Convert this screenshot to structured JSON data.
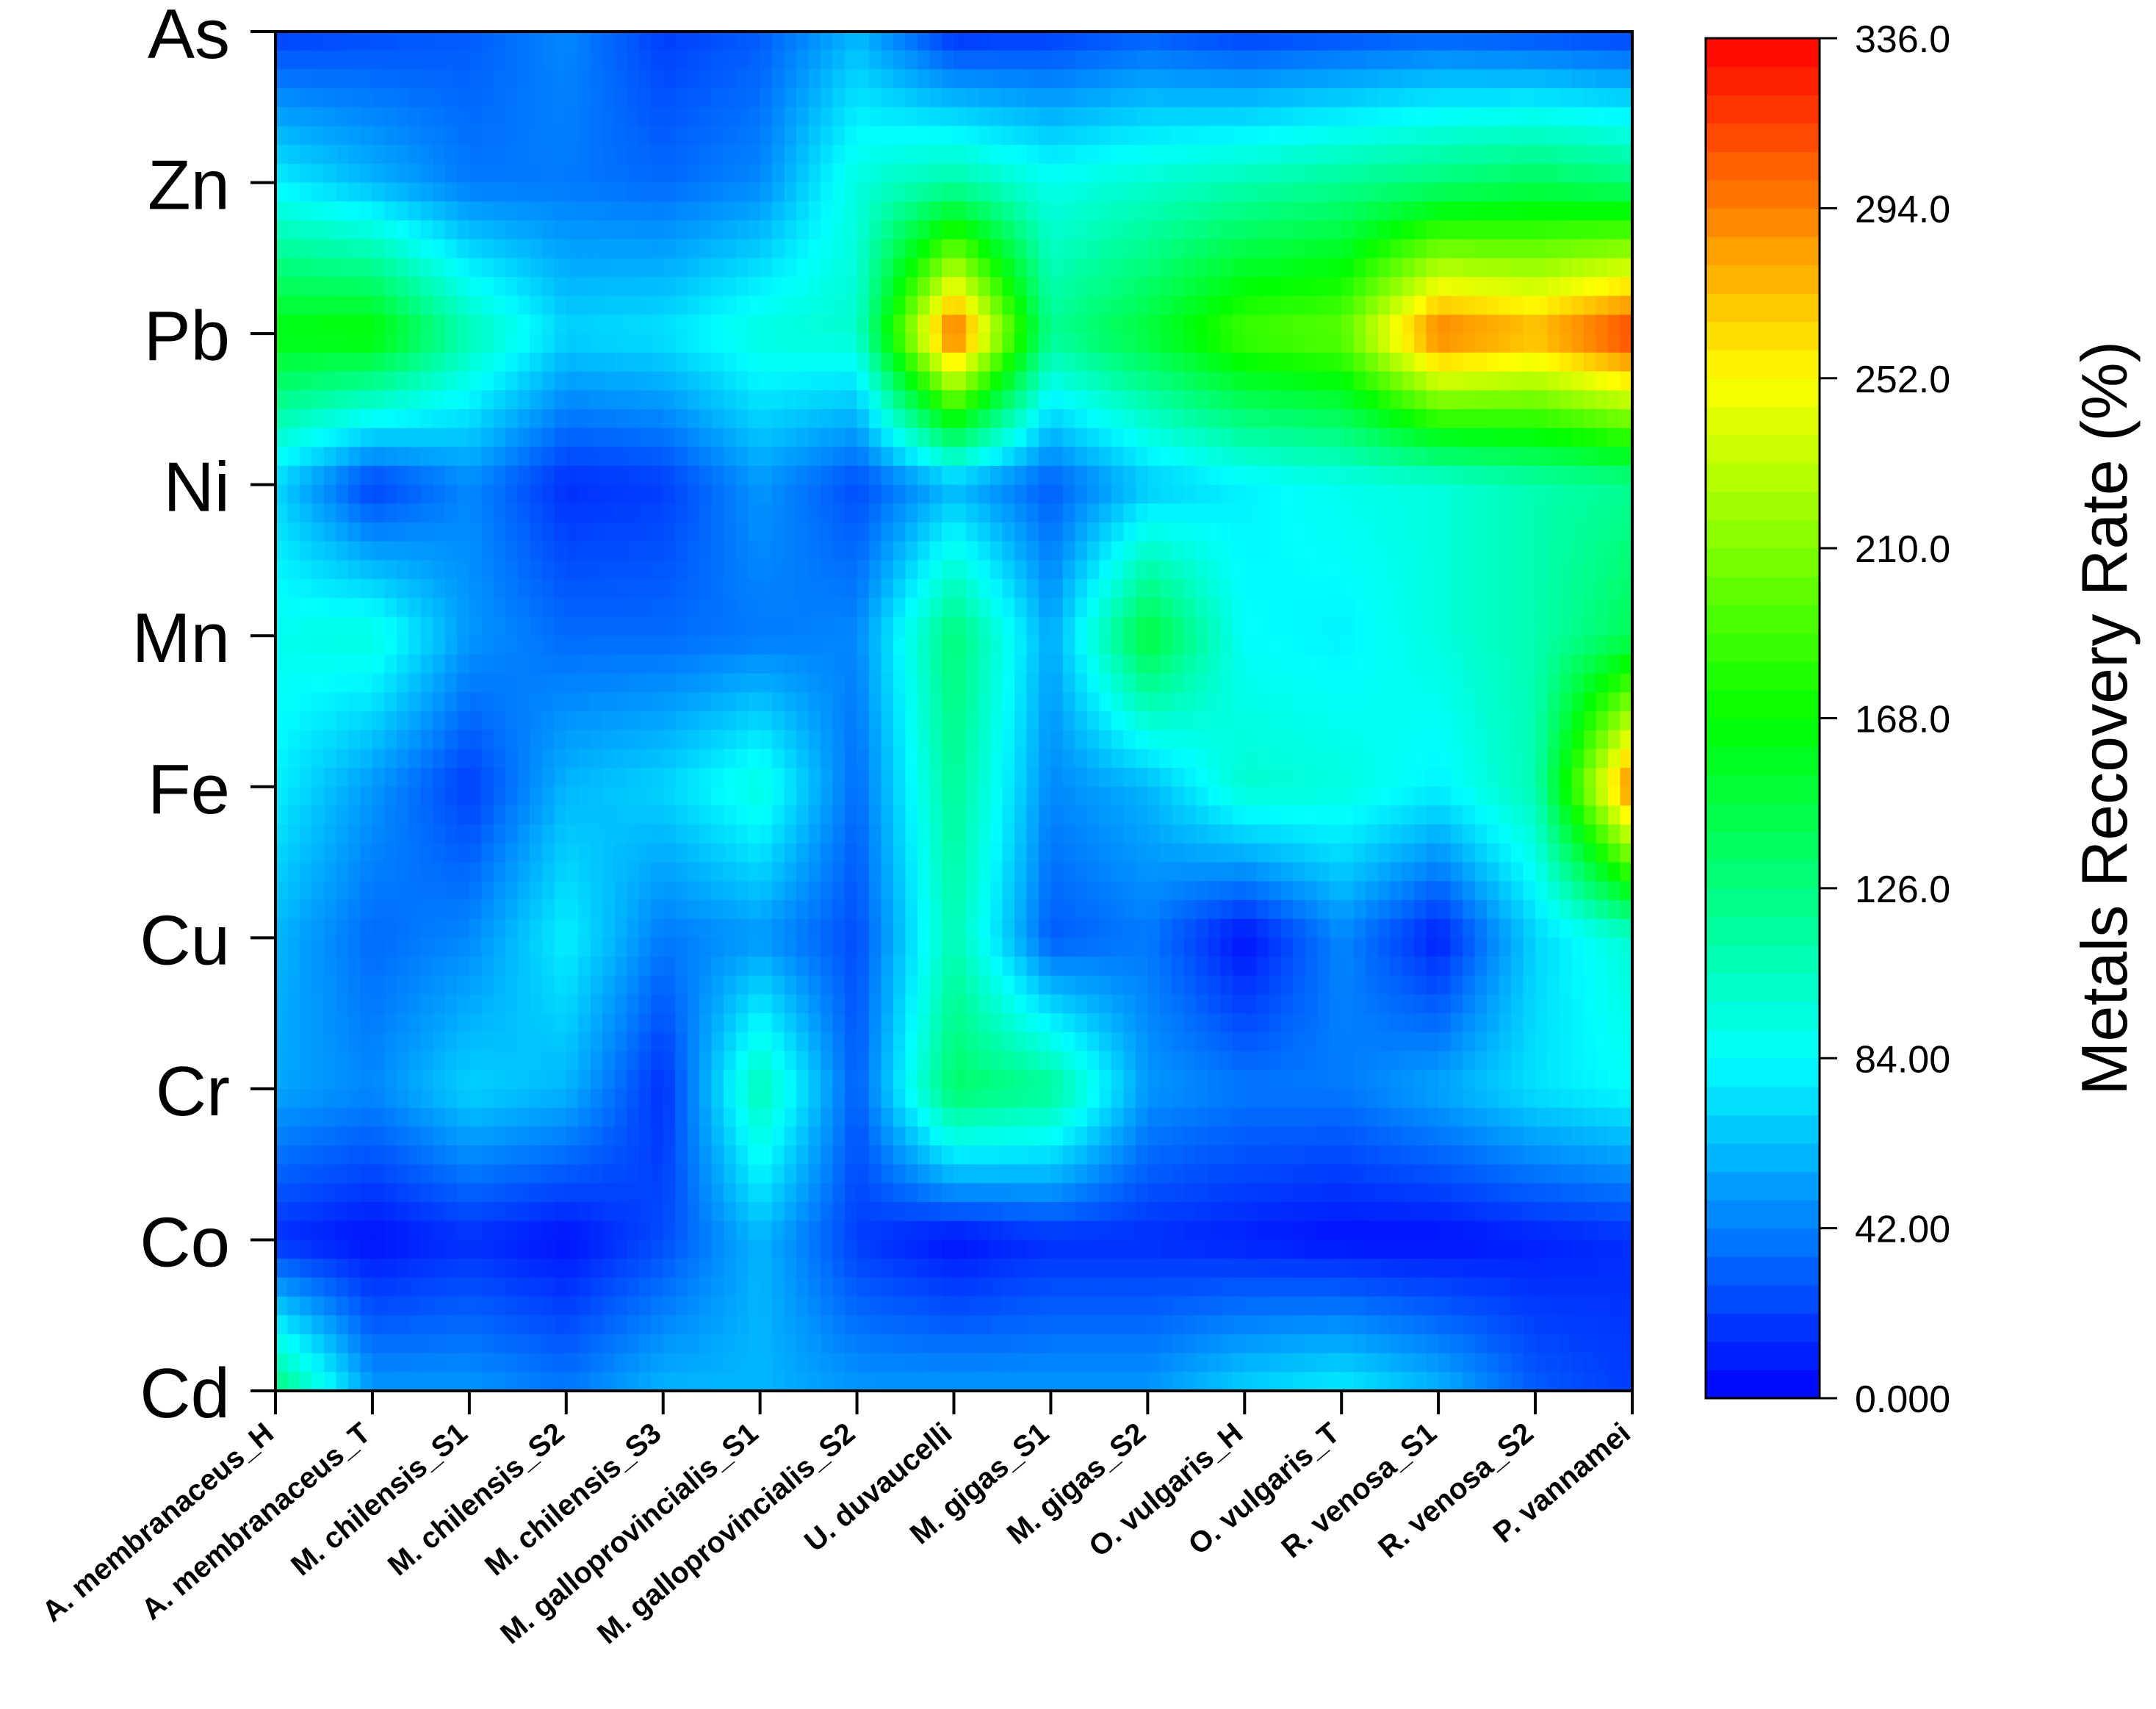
{
  "chart_data": {
    "type": "heatmap",
    "title": "",
    "xlabel": "",
    "ylabel": "",
    "x_categories": [
      "A. membranaceus_H",
      "A. membranaceus_T",
      "M. chilensis_S1",
      "M. chilensis_S2",
      "M. chilensis_S3",
      "M. galloprovincialis_S1",
      "M. galloprovincialis_S2",
      "U. duvaucelli",
      "M. gigas_S1",
      "M. gigas_S2",
      "O. vulgaris_H",
      "O. vulgaris_T",
      "R. venosa_S1",
      "R. venosa_S2",
      "P. vannamei"
    ],
    "y_categories": [
      "As",
      "Zn",
      "Pb",
      "Ni",
      "Mn",
      "Fe",
      "Cu",
      "Cr",
      "Co",
      "Cd"
    ],
    "values": [
      [
        20,
        25,
        30,
        45,
        20,
        30,
        60,
        15,
        20,
        30,
        20,
        25,
        30,
        25,
        20
      ],
      [
        80,
        60,
        40,
        40,
        35,
        45,
        95,
        115,
        90,
        100,
        110,
        120,
        130,
        140,
        130
      ],
      [
        165,
        170,
        110,
        70,
        75,
        95,
        100,
        310,
        120,
        150,
        190,
        200,
        300,
        280,
        320
      ],
      [
        70,
        20,
        45,
        15,
        20,
        50,
        25,
        60,
        30,
        65,
        80,
        90,
        95,
        110,
        120
      ],
      [
        90,
        95,
        50,
        35,
        35,
        40,
        45,
        130,
        55,
        150,
        85,
        80,
        95,
        110,
        140
      ],
      [
        80,
        50,
        20,
        60,
        70,
        95,
        35,
        120,
        45,
        60,
        100,
        95,
        80,
        110,
        300
      ],
      [
        60,
        35,
        45,
        80,
        40,
        50,
        25,
        110,
        30,
        40,
        5,
        45,
        10,
        70,
        100
      ],
      [
        55,
        45,
        70,
        60,
        15,
        110,
        30,
        135,
        120,
        50,
        40,
        40,
        55,
        75,
        85
      ],
      [
        15,
        5,
        15,
        5,
        25,
        60,
        20,
        5,
        15,
        15,
        10,
        5,
        5,
        10,
        15
      ],
      [
        130,
        50,
        50,
        40,
        60,
        60,
        50,
        50,
        50,
        50,
        70,
        80,
        60,
        30,
        20
      ]
    ],
    "colorbar": {
      "label": "Metals Recovery Rate (%)",
      "min": 0,
      "max": 336,
      "tick_values": [
        0,
        42,
        84,
        126,
        168,
        210,
        252,
        294,
        336
      ],
      "tick_labels": [
        "0.000",
        "42.00",
        "84.00",
        "126.0",
        "168.0",
        "210.0",
        "252.0",
        "294.0",
        "336.0"
      ],
      "colormap": [
        "#0000ff",
        "#00ffff",
        "#00ff00",
        "#ffff00",
        "#ff0000"
      ]
    },
    "grid": false
  }
}
